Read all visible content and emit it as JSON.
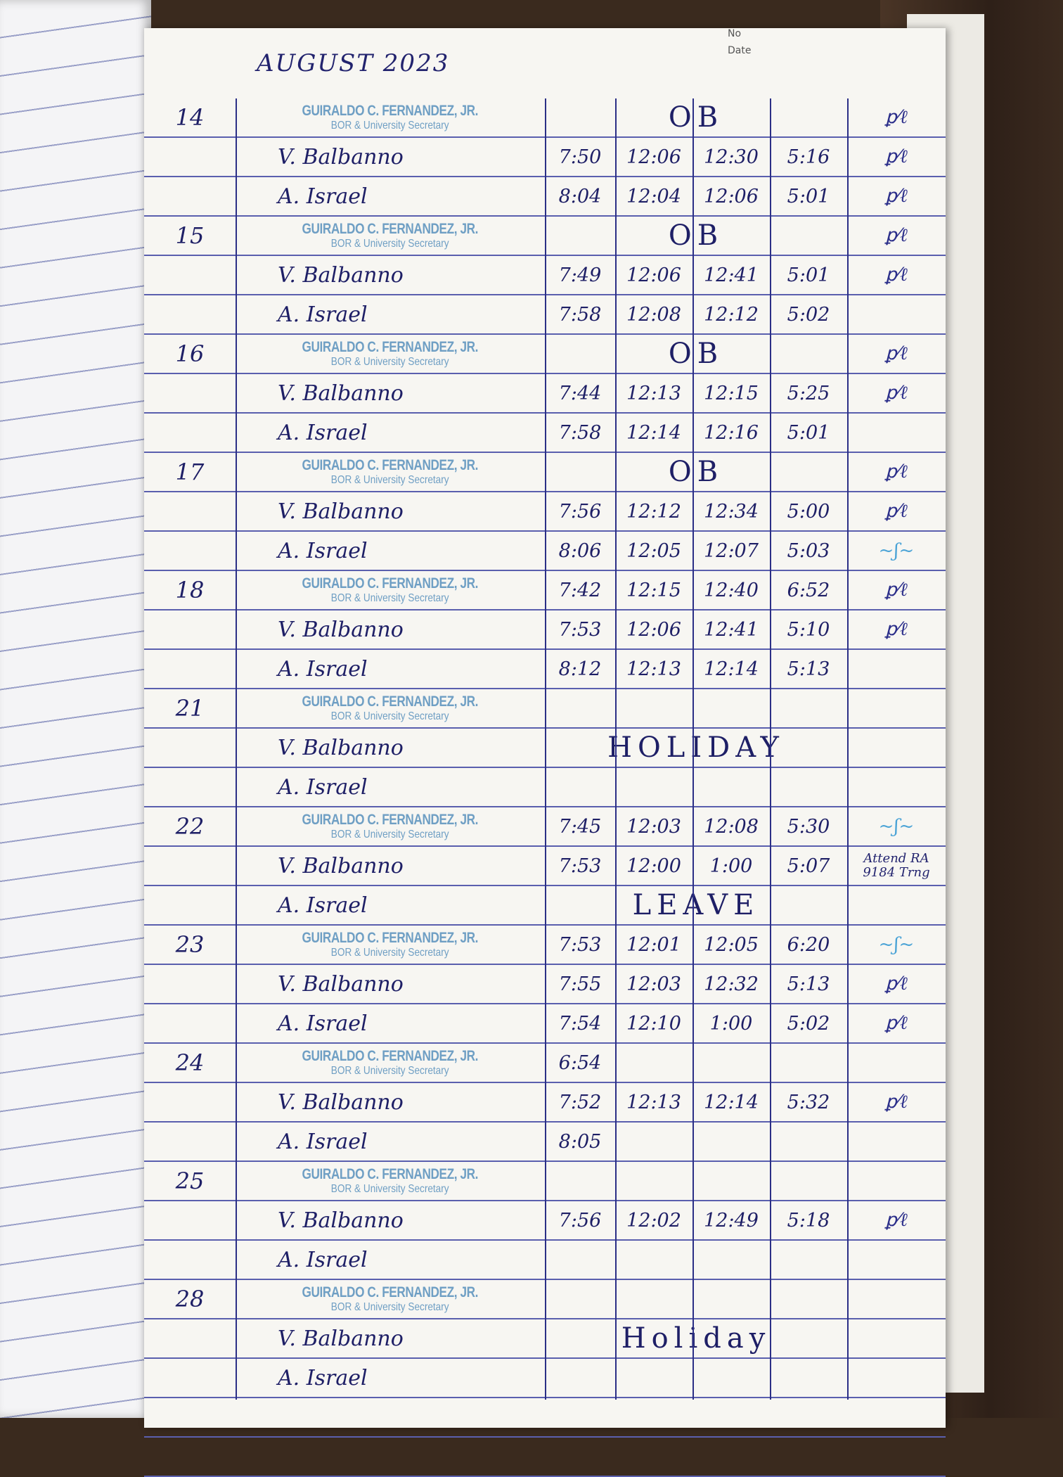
{
  "header": {
    "month": "AUGUST 2023",
    "no_label": "No",
    "date_label": "Date"
  },
  "stamp": {
    "name": "GUIRALDO C. FERNANDEZ, JR.",
    "title": "BOR & University Secretary"
  },
  "colors": {
    "ink": "#1e1f66",
    "stamp": "#6f9fc4",
    "rule": "#5a5fae",
    "blue_pen": "#4aa3d6"
  },
  "days": [
    {
      "date": "14",
      "rows": [
        {
          "type": "stamp",
          "note": "OB",
          "sig": "initials"
        },
        {
          "name": "V. Balbanno",
          "times": [
            "7:50",
            "12:06",
            "12:30",
            "5:16"
          ],
          "sig": "initials"
        },
        {
          "name": "A. Israel",
          "times": [
            "8:04",
            "12:04",
            "12:06",
            "5:01"
          ],
          "sig": "initials"
        }
      ]
    },
    {
      "date": "15",
      "rows": [
        {
          "type": "stamp",
          "note": "OB",
          "sig": "initials"
        },
        {
          "name": "V. Balbanno",
          "times": [
            "7:49",
            "12:06",
            "12:41",
            "5:01"
          ],
          "sig": "initials"
        },
        {
          "name": "A. Israel",
          "times": [
            "7:58",
            "12:08",
            "12:12",
            "5:02"
          ]
        }
      ]
    },
    {
      "date": "16",
      "rows": [
        {
          "type": "stamp",
          "note": "OB",
          "sig": "initials"
        },
        {
          "name": "V. Balbanno",
          "times": [
            "7:44",
            "12:13",
            "12:15",
            "5:25"
          ],
          "sig": "initials"
        },
        {
          "name": "A. Israel",
          "times": [
            "7:58",
            "12:14",
            "12:16",
            "5:01"
          ]
        }
      ]
    },
    {
      "date": "17",
      "rows": [
        {
          "type": "stamp",
          "note": "OB",
          "sig": "initials"
        },
        {
          "name": "V. Balbanno",
          "times": [
            "7:56",
            "12:12",
            "12:34",
            "5:00"
          ],
          "sig": "initials"
        },
        {
          "name": "A. Israel",
          "times": [
            "8:06",
            "12:05",
            "12:07",
            "5:03"
          ],
          "sig": "signature-blue"
        }
      ]
    },
    {
      "date": "18",
      "rows": [
        {
          "type": "stamp",
          "times": [
            "7:42",
            "12:15",
            "12:40",
            "6:52"
          ],
          "sig": "initials"
        },
        {
          "name": "V. Balbanno",
          "times": [
            "7:53",
            "12:06",
            "12:41",
            "5:10"
          ],
          "sig": "initials"
        },
        {
          "name": "A. Israel",
          "times": [
            "8:12",
            "12:13",
            "12:14",
            "5:13"
          ]
        }
      ]
    },
    {
      "date": "21",
      "rows": [
        {
          "type": "stamp"
        },
        {
          "name": "V. Balbanno",
          "note": "HOLIDAY"
        },
        {
          "name": "A. Israel"
        }
      ]
    },
    {
      "date": "22",
      "rows": [
        {
          "type": "stamp",
          "times": [
            "7:45",
            "12:03",
            "12:08",
            "5:30"
          ],
          "sig": "signature-blue"
        },
        {
          "name": "V. Balbanno",
          "times": [
            "7:53",
            "12:00",
            "1:00",
            "5:07"
          ],
          "remark": "Attend RA 9184 Trng"
        },
        {
          "name": "A. Israel",
          "note": "LEAVE"
        }
      ]
    },
    {
      "date": "23",
      "rows": [
        {
          "type": "stamp",
          "times": [
            "7:53",
            "12:01",
            "12:05",
            "6:20"
          ],
          "sig": "signature-blue"
        },
        {
          "name": "V. Balbanno",
          "times": [
            "7:55",
            "12:03",
            "12:32",
            "5:13"
          ],
          "sig": "initials"
        },
        {
          "name": "A. Israel",
          "times": [
            "7:54",
            "12:10",
            "1:00",
            "5:02"
          ],
          "sig": "initials"
        }
      ]
    },
    {
      "date": "24",
      "rows": [
        {
          "type": "stamp",
          "times": [
            "6:54",
            "",
            "",
            ""
          ]
        },
        {
          "name": "V. Balbanno",
          "times": [
            "7:52",
            "12:13",
            "12:14",
            "5:32"
          ],
          "sig": "initials"
        },
        {
          "name": "A. Israel",
          "times": [
            "8:05",
            "",
            "",
            ""
          ]
        }
      ]
    },
    {
      "date": "25",
      "rows": [
        {
          "type": "stamp"
        },
        {
          "name": "V. Balbanno",
          "times": [
            "7:56",
            "12:02",
            "12:49",
            "5:18"
          ],
          "sig": "initials"
        },
        {
          "name": "A. Israel"
        }
      ]
    },
    {
      "date": "28",
      "rows": [
        {
          "type": "stamp"
        },
        {
          "name": "V. Balbanno",
          "note": "Holiday"
        },
        {
          "name": "A. Israel"
        }
      ]
    }
  ]
}
